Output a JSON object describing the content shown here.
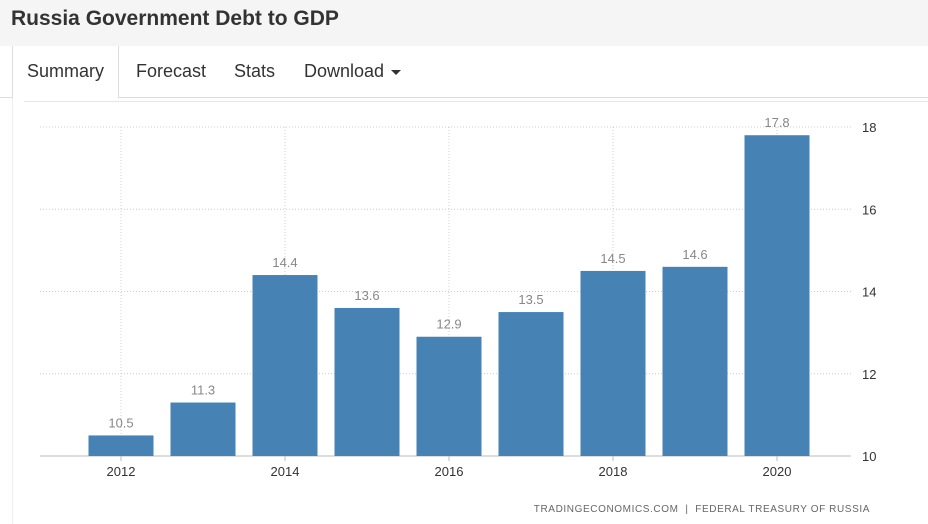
{
  "page": {
    "title": "Russia Government Debt to GDP"
  },
  "tabs": [
    {
      "label": "Summary",
      "active": true
    },
    {
      "label": "Forecast"
    },
    {
      "label": "Stats"
    },
    {
      "label": "Download",
      "has_dropdown": true
    }
  ],
  "source_credit": "TRADINGECONOMICS.COM  |  FEDERAL TREASURY OF RUSSIA",
  "colors": {
    "bar": "#4682b4",
    "grid": "#cccccc",
    "label": "#888888",
    "tick": "#333333"
  },
  "chart_data": {
    "type": "bar",
    "categories": [
      "2012",
      "2013",
      "2014",
      "2015",
      "2016",
      "2017",
      "2018",
      "2019",
      "2020"
    ],
    "x_tick_labels": [
      "2012",
      "2014",
      "2016",
      "2018",
      "2020"
    ],
    "values": [
      10.5,
      11.3,
      14.4,
      13.6,
      12.9,
      13.5,
      14.5,
      14.6,
      17.8
    ],
    "data_labels": [
      "10.5",
      "11.3",
      "14.4",
      "13.6",
      "12.9",
      "13.5",
      "14.5",
      "14.6",
      "17.8"
    ],
    "y_ticks": [
      10,
      12,
      14,
      16,
      18
    ],
    "ylim": [
      10,
      18
    ],
    "y_axis_side": "right",
    "grid": true,
    "title": "",
    "xlabel": "",
    "ylabel": ""
  }
}
